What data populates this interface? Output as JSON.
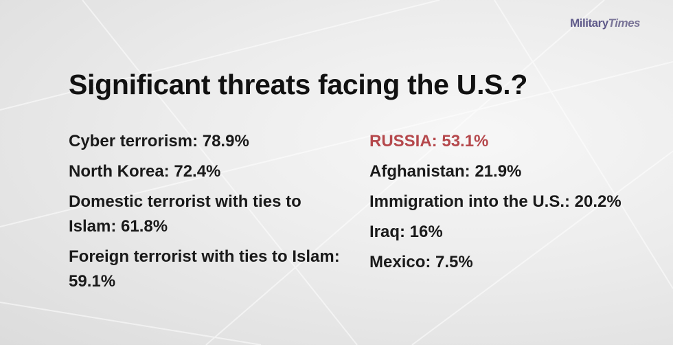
{
  "brand": {
    "logo_part1": "Military",
    "logo_part2": "Times"
  },
  "title": "Significant threats facing the U.S.?",
  "left_list": [
    "Cyber terrorism: 78.9%",
    "North Korea: 72.4%",
    "Domestic terrorist with ties to Islam: 61.8%",
    "Foreign terrorist with ties to Islam: 59.1%"
  ],
  "right_list": [
    "RUSSIA: 53.1%",
    "Afghanistan: 21.9%",
    "Immigration into the U.S.: 20.2%",
    "Iraq: 16%",
    "Mexico: 7.5%"
  ],
  "colors": {
    "highlight": "#b5484c",
    "text": "#1a1a1a",
    "logo": "#5f5a8a"
  }
}
